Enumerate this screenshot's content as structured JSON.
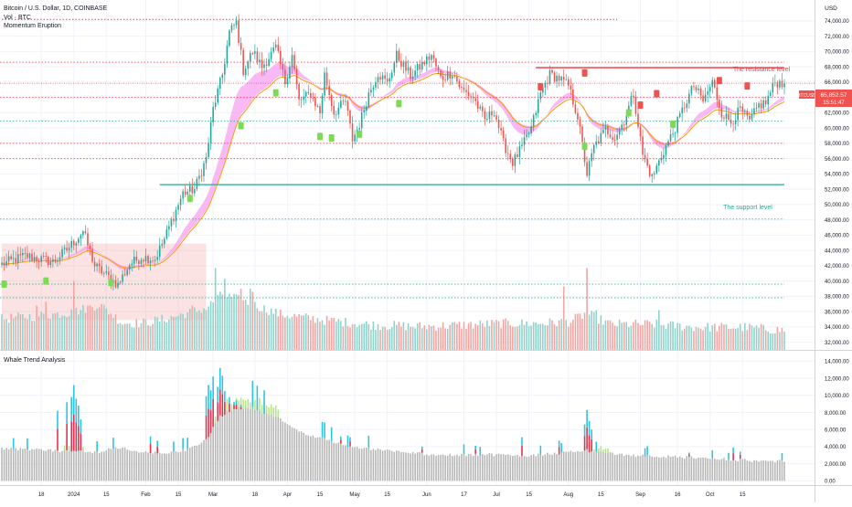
{
  "header": {
    "symbol_line": "Bitcoin / U.S. Dollar, 1D, COINBASE",
    "indicator_1": "Vol · BTC",
    "indicator_2": "Momentum Eruption",
    "currency": "USD"
  },
  "price_label": {
    "ticker": "BTCUSD",
    "price": "65,852.57",
    "countdown": "15:51:47"
  },
  "lower_pane": {
    "title": "Whale Trend Analysis"
  },
  "annotations": {
    "resistance": "The resistance level",
    "support": "The support level"
  },
  "colors": {
    "up": "#26a69a",
    "down": "#ef5350",
    "vol_up": "#8fd3cb",
    "vol_down": "#f4a4a2",
    "resistance_line": "#f23645",
    "support_line": "#22ab94",
    "cloud": "#f5a2f2",
    "ma_orange": "#ff9800",
    "whale_gray": "#b7b7b7",
    "whale_green": "#b9e58a",
    "whale_red": "#e0324f",
    "whale_cyan": "#2bc4e4"
  },
  "chart_data": {
    "type": "candlestick",
    "title": "Bitcoin / U.S. Dollar, 1D, COINBASE",
    "currency": "USD",
    "x_tick_labels": [
      "18",
      "2024",
      "15",
      "Feb",
      "15",
      "Mar",
      "18",
      "Apr",
      "15",
      "May",
      "15",
      "Jun",
      "17",
      "Jul",
      "15",
      "Aug",
      "15",
      "Sep",
      "16",
      "Oct",
      "15"
    ],
    "x_tick_days": [
      17,
      31,
      45,
      62,
      76,
      91,
      109,
      123,
      137,
      152,
      166,
      183,
      199,
      213,
      227,
      244,
      258,
      275,
      291,
      305,
      319
    ],
    "price_axis": {
      "ticks": [
        32000,
        34000,
        36000,
        38000,
        40000,
        42000,
        44000,
        46000,
        48000,
        50000,
        52000,
        54000,
        56000,
        58000,
        60000,
        62000,
        64000,
        66000,
        68000,
        70000,
        72000,
        74000
      ],
      "tick_labels": [
        "32,000.00",
        "34,000.00",
        "36,000.00",
        "38,000.00",
        "40,000.00",
        "42,000.00",
        "44,000.00",
        "46,000.00",
        "48,000.00",
        "50,000.00",
        "52,000.00",
        "54,000.00",
        "56,000.00",
        "58,000.00",
        "60,000.00",
        "62,000.00",
        "64,000.00",
        "66,000.00",
        "68,000.00",
        "70,000.00",
        "72,000.00",
        "74,000.00"
      ],
      "range": [
        31000,
        76500
      ]
    },
    "whale_axis": {
      "ticks": [
        0,
        2000,
        4000,
        6000,
        8000,
        10000,
        12000,
        14000
      ],
      "tick_labels": [
        "0.00",
        "2,000.00",
        "4,000.00",
        "6,000.00",
        "8,000.00",
        "10,000.00",
        "12,000.00",
        "14,000.00"
      ],
      "range": [
        -500,
        15000
      ]
    },
    "levels": {
      "resistance": 67900,
      "support": 52600,
      "dotted_top": 74200,
      "dotted_green": [
        60900,
        48100,
        39600,
        37800
      ],
      "dotted_red": [
        68600,
        64000,
        58000,
        56000
      ]
    },
    "last_price": 65852.57,
    "day_range": [
      0,
      337
    ],
    "price_anchors": [
      [
        0,
        42200
      ],
      [
        10,
        43300
      ],
      [
        22,
        42500
      ],
      [
        28,
        44100
      ],
      [
        35,
        46500
      ],
      [
        40,
        42000
      ],
      [
        44,
        41000
      ],
      [
        50,
        39500
      ],
      [
        55,
        42200
      ],
      [
        60,
        43100
      ],
      [
        66,
        42900
      ],
      [
        70,
        45500
      ],
      [
        74,
        48500
      ],
      [
        78,
        51500
      ],
      [
        83,
        52000
      ],
      [
        88,
        56000
      ],
      [
        91,
        62500
      ],
      [
        95,
        67000
      ],
      [
        98,
        72500
      ],
      [
        101,
        73800
      ],
      [
        104,
        67500
      ],
      [
        108,
        70000
      ],
      [
        112,
        68000
      ],
      [
        118,
        70500
      ],
      [
        122,
        66000
      ],
      [
        125,
        69500
      ],
      [
        128,
        63500
      ],
      [
        133,
        64500
      ],
      [
        137,
        62000
      ],
      [
        139,
        67000
      ],
      [
        143,
        62000
      ],
      [
        148,
        63500
      ],
      [
        151,
        58500
      ],
      [
        154,
        60500
      ],
      [
        158,
        64500
      ],
      [
        162,
        67200
      ],
      [
        166,
        65800
      ],
      [
        170,
        69500
      ],
      [
        176,
        66800
      ],
      [
        181,
        68300
      ],
      [
        185,
        69500
      ],
      [
        189,
        66500
      ],
      [
        194,
        67300
      ],
      [
        198,
        65000
      ],
      [
        203,
        64000
      ],
      [
        208,
        61000
      ],
      [
        212,
        62300
      ],
      [
        216,
        58000
      ],
      [
        220,
        55500
      ],
      [
        224,
        57500
      ],
      [
        228,
        60000
      ],
      [
        232,
        64500
      ],
      [
        236,
        67000
      ],
      [
        240,
        66500
      ],
      [
        244,
        65500
      ],
      [
        248,
        61500
      ],
      [
        252,
        54000
      ],
      [
        255,
        57500
      ],
      [
        260,
        59800
      ],
      [
        264,
        58800
      ],
      [
        268,
        61000
      ],
      [
        272,
        64500
      ],
      [
        276,
        56500
      ],
      [
        280,
        53500
      ],
      [
        285,
        57000
      ],
      [
        290,
        60000
      ],
      [
        294,
        63000
      ],
      [
        298,
        65500
      ],
      [
        302,
        63500
      ],
      [
        306,
        66000
      ],
      [
        310,
        62000
      ],
      [
        314,
        60800
      ],
      [
        318,
        62400
      ],
      [
        322,
        60800
      ],
      [
        326,
        63000
      ],
      [
        329,
        63300
      ],
      [
        333,
        66000
      ],
      [
        337,
        65850
      ]
    ],
    "volume_anchors": [
      [
        0,
        34800
      ],
      [
        30,
        35600
      ],
      [
        42,
        36700
      ],
      [
        52,
        34300
      ],
      [
        60,
        34200
      ],
      [
        72,
        34900
      ],
      [
        88,
        36200
      ],
      [
        95,
        38000
      ],
      [
        105,
        37000
      ],
      [
        120,
        35400
      ],
      [
        140,
        34600
      ],
      [
        160,
        34000
      ],
      [
        180,
        33800
      ],
      [
        200,
        34000
      ],
      [
        215,
        34200
      ],
      [
        230,
        34200
      ],
      [
        244,
        34400
      ],
      [
        252,
        35500
      ],
      [
        262,
        34100
      ],
      [
        280,
        34100
      ],
      [
        300,
        33700
      ],
      [
        320,
        33700
      ],
      [
        337,
        33300
      ]
    ],
    "volume_spikes": [
      [
        15,
        36800
      ],
      [
        19,
        37300
      ],
      [
        30,
        36300
      ],
      [
        31,
        40000
      ],
      [
        82,
        36800
      ],
      [
        92,
        41700
      ],
      [
        96,
        40300
      ],
      [
        97,
        37900
      ],
      [
        103,
        39000
      ],
      [
        107,
        39000
      ],
      [
        108,
        38600
      ],
      [
        242,
        39300
      ],
      [
        252,
        41700
      ],
      [
        256,
        36200
      ],
      [
        283,
        36200
      ]
    ],
    "whale_anchors": [
      [
        0,
        3800
      ],
      [
        20,
        3600
      ],
      [
        40,
        3300
      ],
      [
        50,
        3900
      ],
      [
        60,
        3400
      ],
      [
        70,
        3300
      ],
      [
        80,
        3600
      ],
      [
        88,
        4800
      ],
      [
        94,
        7500
      ],
      [
        100,
        8500
      ],
      [
        108,
        8500
      ],
      [
        118,
        7500
      ],
      [
        130,
        5600
      ],
      [
        140,
        4800
      ],
      [
        150,
        4000
      ],
      [
        160,
        3700
      ],
      [
        175,
        3300
      ],
      [
        190,
        3000
      ],
      [
        200,
        3000
      ],
      [
        210,
        3100
      ],
      [
        224,
        2900
      ],
      [
        244,
        3300
      ],
      [
        250,
        3600
      ],
      [
        260,
        3300
      ],
      [
        270,
        3000
      ],
      [
        290,
        2800
      ],
      [
        310,
        2600
      ],
      [
        325,
        2300
      ],
      [
        337,
        2300
      ]
    ],
    "whale_spikes": [
      [
        24,
        8200
      ],
      [
        28,
        9200
      ],
      [
        30,
        9800
      ],
      [
        31,
        11200
      ],
      [
        32,
        9600
      ],
      [
        33,
        8800
      ],
      [
        34,
        7200
      ],
      [
        64,
        5200
      ],
      [
        67,
        4700
      ],
      [
        88,
        9900
      ],
      [
        89,
        11200
      ],
      [
        90,
        10600
      ],
      [
        91,
        12200
      ],
      [
        93,
        11000
      ],
      [
        94,
        13200
      ],
      [
        95,
        12300
      ],
      [
        96,
        10500
      ],
      [
        98,
        9800
      ],
      [
        100,
        9200
      ],
      [
        101,
        9400
      ],
      [
        103,
        8900
      ],
      [
        130,
        5600
      ],
      [
        146,
        5200
      ],
      [
        150,
        5100
      ],
      [
        181,
        4000
      ],
      [
        204,
        4100
      ],
      [
        224,
        5100
      ],
      [
        240,
        4700
      ],
      [
        251,
        6600
      ],
      [
        252,
        8300
      ],
      [
        253,
        7000
      ],
      [
        254,
        6000
      ],
      [
        296,
        3300
      ],
      [
        315,
        3900
      ],
      [
        318,
        3400
      ]
    ]
  }
}
